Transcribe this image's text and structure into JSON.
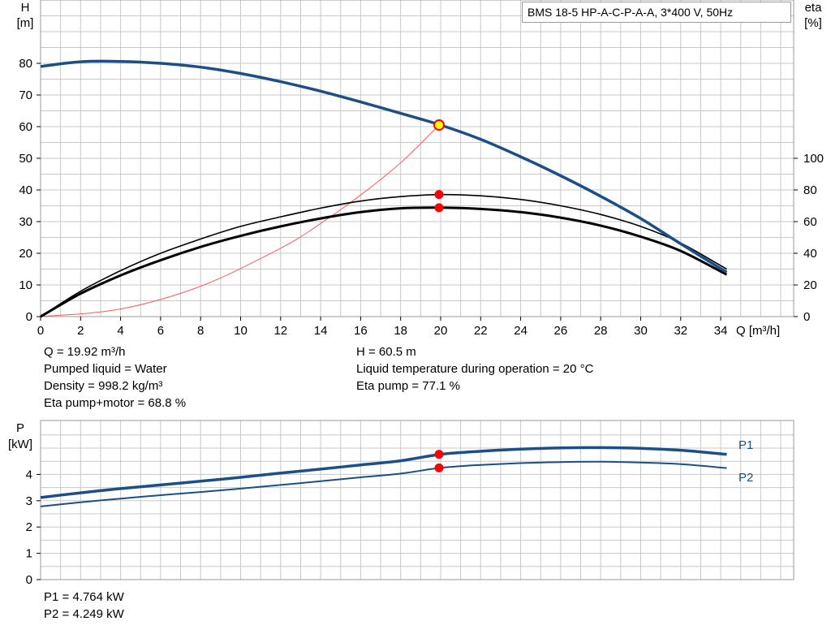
{
  "header": {
    "title": "BMS 18-5 HP-A-C-P-A-A, 3*400 V, 50Hz"
  },
  "top_chart": {
    "y_left_label": "H",
    "y_left_unit": "[m]",
    "y_right_label": "eta",
    "y_right_unit": "[%]",
    "x_label": "Q [m³/h]"
  },
  "info_left": [
    "Q = 19.92 m³/h",
    "Pumped liquid = Water",
    "Density = 998.2 kg/m³",
    "Eta pump+motor = 68.8 %"
  ],
  "info_right": [
    "H = 60.5 m",
    "Liquid temperature during operation = 20 °C",
    "Eta pump = 77.1 %"
  ],
  "bottom_chart": {
    "y_label": "P",
    "y_unit": "[kW]",
    "series_labels": [
      "P1",
      "P2"
    ]
  },
  "info_bottom": [
    "P1 = 4.764 kW",
    "P2 = 4.249 kW"
  ],
  "colors": {
    "head_curve": "#1c4f86",
    "power_curve": "#1c4f86",
    "eta_curve": "#000000",
    "system_curve": "#ff5a5a",
    "duty_point": "#ff0000",
    "duty_point_fill": "#ffff00",
    "grid": "#c8c8c8"
  },
  "chart_data": [
    {
      "type": "line",
      "title": "BMS 18-5 HP-A-C-P-A-A, 3*400 V, 50Hz",
      "xlabel": "Q [m³/h]",
      "ylabel": "H [m]",
      "y2label": "eta [%]",
      "xlim": [
        0,
        36
      ],
      "ylim": [
        0,
        85
      ],
      "y2lim": [
        0,
        100
      ],
      "grid": true,
      "x_ticks": [
        0,
        2,
        4,
        6,
        8,
        10,
        12,
        14,
        16,
        18,
        20,
        22,
        24,
        26,
        28,
        30,
        32,
        34
      ],
      "y_ticks": [
        0,
        10,
        20,
        30,
        40,
        50,
        60,
        70,
        80
      ],
      "y2_ticks": [
        0,
        20,
        40,
        60,
        80,
        100
      ],
      "series": [
        {
          "axis": "left",
          "x": [
            0,
            2,
            4,
            6,
            8,
            10,
            12,
            14,
            16,
            18,
            20,
            22,
            24,
            26,
            28,
            30,
            32,
            34.3
          ],
          "values": [
            79,
            80.5,
            80.6,
            80,
            78.8,
            76.8,
            74.2,
            71.2,
            67.8,
            64.2,
            60.5,
            56,
            50.5,
            44.5,
            38,
            31,
            23,
            14
          ]
        },
        {
          "axis": "right",
          "x": [
            0,
            2,
            4,
            6,
            8,
            10,
            12,
            14,
            16,
            18,
            20,
            22,
            24,
            26,
            28,
            30,
            32,
            34.3
          ],
          "values": [
            0,
            16,
            29,
            40,
            49,
            57,
            63,
            68.5,
            73,
            75.8,
            77.1,
            76.3,
            74,
            70,
            64.5,
            57,
            46.5,
            30
          ]
        },
        {
          "axis": "right",
          "x": [
            0,
            2,
            4,
            6,
            8,
            10,
            12,
            14,
            16,
            18,
            20,
            22,
            24,
            26,
            28,
            30,
            32,
            34.3
          ],
          "values": [
            0,
            14.5,
            26,
            35.6,
            44,
            51,
            57,
            62,
            66,
            68.4,
            68.8,
            68,
            66,
            62.5,
            57.5,
            50.5,
            41.5,
            26.5
          ]
        },
        {
          "axis": "left",
          "x": [
            0,
            4,
            8,
            12,
            14,
            16,
            18,
            19.92
          ],
          "values": [
            0,
            2.4,
            9.6,
            21.6,
            29.4,
            38.4,
            48.6,
            60.5
          ]
        }
      ],
      "duty_points": [
        {
          "x": 19.92,
          "value": 60.5,
          "axis": "left"
        },
        {
          "x": 19.92,
          "value": 77.1,
          "axis": "right"
        },
        {
          "x": 19.92,
          "value": 68.8,
          "axis": "right"
        }
      ]
    },
    {
      "type": "line",
      "ylabel": "P [kW]",
      "xlim": [
        0,
        36
      ],
      "ylim": [
        0,
        5.2
      ],
      "grid": true,
      "y_ticks": [
        0,
        1,
        2,
        3,
        4
      ],
      "series": [
        {
          "name": "P1",
          "x": [
            0,
            2,
            4,
            6,
            8,
            10,
            12,
            14,
            16,
            18,
            20,
            22,
            24,
            26,
            28,
            30,
            32,
            34.3
          ],
          "values": [
            3.12,
            3.3,
            3.46,
            3.6,
            3.74,
            3.89,
            4.05,
            4.2,
            4.36,
            4.52,
            4.764,
            4.88,
            4.96,
            5.01,
            5.02,
            4.99,
            4.92,
            4.76
          ]
        },
        {
          "name": "P2",
          "x": [
            0,
            2,
            4,
            6,
            8,
            10,
            12,
            14,
            16,
            18,
            20,
            22,
            24,
            26,
            28,
            30,
            32,
            34.3
          ],
          "values": [
            2.78,
            2.94,
            3.08,
            3.21,
            3.33,
            3.46,
            3.6,
            3.74,
            3.89,
            4.03,
            4.249,
            4.36,
            4.43,
            4.47,
            4.48,
            4.45,
            4.39,
            4.24
          ]
        }
      ],
      "duty_points": [
        {
          "x": 19.92,
          "value": 4.764
        },
        {
          "x": 19.92,
          "value": 4.249
        }
      ]
    }
  ]
}
